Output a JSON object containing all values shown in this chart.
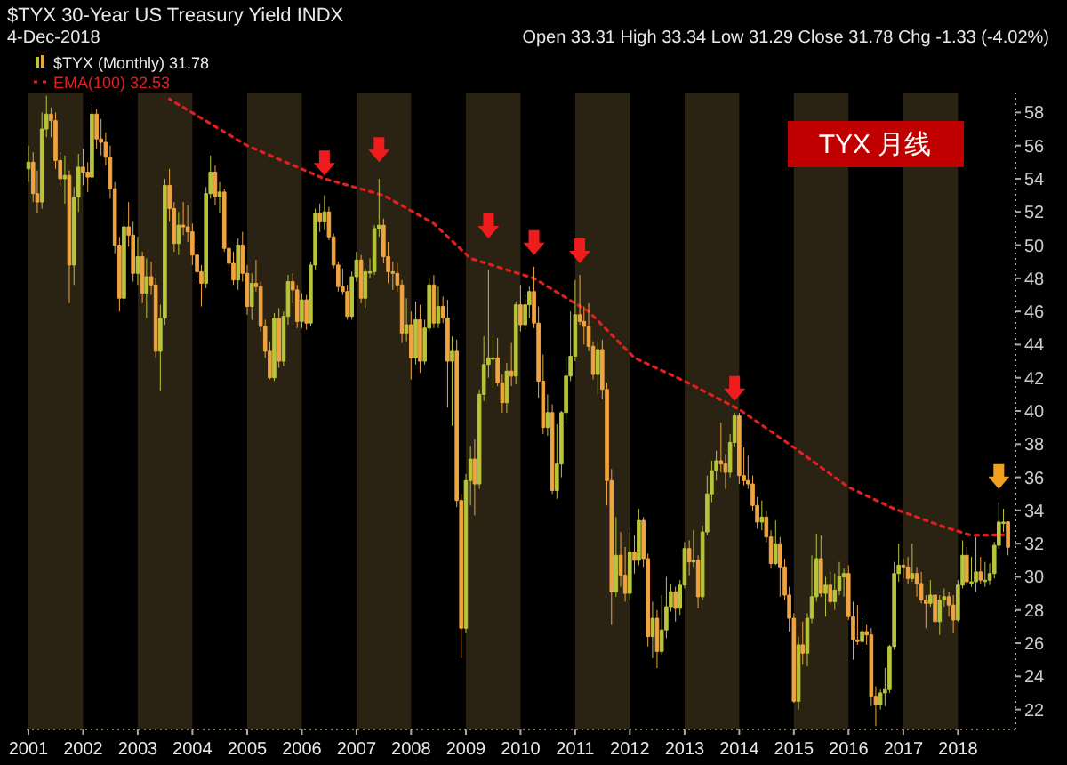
{
  "chart_data": {
    "type": "candlestick",
    "title": "$TYX 30-Year US Treasury Yield INDX",
    "subtitle": "4-Dec-2018",
    "annotations": [
      "Open 33.31  High 33.34  Low 31.29  Close 31.78  Chg -1.33 (-4.02%)",
      "TYX 月线"
    ],
    "legend": "top left",
    "colors": [
      "#b8c43a",
      "#f0a440",
      "#f0a440",
      "#b8c43a",
      "#b8c43a",
      "#f0a440",
      "#f0a440",
      "#f0a440",
      "#b8c43a",
      "#f0a440",
      "#b8c43a",
      "#b8c43a",
      "#f0a440",
      "#f0a440",
      "#b8c43a",
      "#f0a440",
      "#f0a440",
      "#f0a440",
      "#f0a440",
      "#f0a440",
      "#f0a440",
      "#b8c43a",
      "#f0a440",
      "#f0a440",
      "#b8c43a",
      "#f0a440",
      "#b8c43a",
      "#f0a440",
      "#f0a440",
      "#b8c43a",
      "#b8c43a",
      "#f0a440",
      "#f0a440",
      "#b8c43a",
      "#f0a440",
      "#f0a440",
      "#f0a440",
      "#f0a440",
      "#f0a440",
      "#b8c43a",
      "#b8c43a",
      "#f0a440",
      "#b8c43a",
      "#f0a440",
      "#f0a440",
      "#f0a440",
      "#b8c43a",
      "#f0a440",
      "#f0a440",
      "#b8c43a",
      "#f0a440",
      "#f0a440",
      "#f0a440",
      "#f0a440",
      "#b8c43a",
      "#f0a440",
      "#b8c43a",
      "#b8c43a",
      "#f0a440",
      "#f0a440",
      "#b8c43a",
      "#f0a440",
      "#b8c43a",
      "#b8c43a",
      "#f0a440",
      "#b8c43a",
      "#f0a440",
      "#f0a440",
      "#f0a440",
      "#f0a440",
      "#f0a440",
      "#b8c43a",
      "#b8c43a",
      "#f0a440",
      "#b8c43a",
      "#b8c43a",
      "#b8c43a",
      "#b8c43a",
      "#f0a440",
      "#f0a440",
      "#f0a440",
      "#f0a440",
      "#f0a440",
      "#b8c43a",
      "#f0a440",
      "#b8c43a",
      "#f0a440",
      "#b8c43a",
      "#b8c43a",
      "#f0a440",
      "#b8c43a",
      "#f0a440",
      "#f0a440",
      "#b8c43a",
      "#f0a440",
      "#f0a440",
      "#b8c43a",
      "#b8c43a",
      "#f0a440",
      "#b8c43a",
      "#b8c43a",
      "#b8c43a",
      "#b8c43a",
      "#f0a440",
      "#f0a440",
      "#b8c43a",
      "#f0a440",
      "#b8c43a",
      "#f0a440",
      "#b8c43a",
      "#b8c43a",
      "#f0a440",
      "#f0a440",
      "#f0a440",
      "#b8c43a",
      "#f0a440",
      "#b8c43a",
      "#b8c43a",
      "#b8c43a",
      "#b8c43a",
      "#b8c43a",
      "#f0a440",
      "#f0a440",
      "#f0a440",
      "#f0a440",
      "#b8c43a",
      "#f0a440",
      "#f0a440",
      "#f0a440",
      "#b8c43a",
      "#f0a440",
      "#f0a440",
      "#b8c43a",
      "#f0a440",
      "#b8c43a",
      "#f0a440",
      "#f0a440",
      "#b8c43a",
      "#f0a440",
      "#b8c43a",
      "#b8c43a",
      "#b8c43a",
      "#f0a440",
      "#b8c43a",
      "#b8c43a",
      "#f0a440",
      "#b8c43a",
      "#f0a440",
      "#b8c43a",
      "#b8c43a",
      "#b8c43a",
      "#b8c43a",
      "#f0a440",
      "#f0a440",
      "#b8c43a",
      "#b8c43a",
      "#f0a440",
      "#f0a440",
      "#f0a440",
      "#f0a440",
      "#f0a440",
      "#b8c43a",
      "#f0a440",
      "#f0a440",
      "#b8c43a",
      "#f0a440",
      "#f0a440",
      "#f0a440",
      "#f0a440",
      "#b8c43a",
      "#f0a440",
      "#b8c43a",
      "#b8c43a",
      "#b8c43a",
      "#f0a440",
      "#b8c43a",
      "#f0a440",
      "#b8c43a",
      "#b8c43a",
      "#b8c43a",
      "#f0a440",
      "#f0a440",
      "#f0a440",
      "#b8c43a",
      "#f0a440",
      "#f0a440",
      "#f0a440",
      "#b8c43a",
      "#b8c43a",
      "#b8c43a",
      "#b8c43a",
      "#b8c43a",
      "#f0a440",
      "#f0a440",
      "#b8c43a",
      "#f0a440",
      "#f0a440",
      "#f0a440",
      "#b8c43a",
      "#f0a440",
      "#b8c43a",
      "#b8c43a",
      "#f0a440",
      "#f0a440",
      "#b8c43a",
      "#b8c43a",
      "#f0a440",
      "#b8c43a",
      "#b8c43a",
      "#f0a440",
      "#b8c43a",
      "#b8c43a",
      "#b8c43a",
      "#b8c43a",
      "#b8c43a",
      "#f0a440"
    ],
    "series": [
      {
        "type": "candlestick",
        "name": "$TYX (Monthly) 31.78",
        "x": [
          "2001-01",
          "2001-02",
          "2001-03",
          "2001-04",
          "2001-05",
          "2001-06",
          "2001-07",
          "2001-08",
          "2001-09",
          "2001-10",
          "2001-11",
          "2001-12",
          "2002-01",
          "2002-02",
          "2002-03",
          "2002-04",
          "2002-05",
          "2002-06",
          "2002-07",
          "2002-08",
          "2002-09",
          "2002-10",
          "2002-11",
          "2002-12",
          "2003-01",
          "2003-02",
          "2003-03",
          "2003-04",
          "2003-05",
          "2003-06",
          "2003-07",
          "2003-08",
          "2003-09",
          "2003-10",
          "2003-11",
          "2003-12",
          "2004-01",
          "2004-02",
          "2004-03",
          "2004-04",
          "2004-05",
          "2004-06",
          "2004-07",
          "2004-08",
          "2004-09",
          "2004-10",
          "2004-11",
          "2004-12",
          "2005-01",
          "2005-02",
          "2005-03",
          "2005-04",
          "2005-05",
          "2005-06",
          "2005-07",
          "2005-08",
          "2005-09",
          "2005-10",
          "2005-11",
          "2005-12",
          "2006-01",
          "2006-02",
          "2006-03",
          "2006-04",
          "2006-05",
          "2006-06",
          "2006-07",
          "2006-08",
          "2006-09",
          "2006-10",
          "2006-11",
          "2006-12",
          "2007-01",
          "2007-02",
          "2007-03",
          "2007-04",
          "2007-05",
          "2007-06",
          "2007-07",
          "2007-08",
          "2007-09",
          "2007-10",
          "2007-11",
          "2007-12",
          "2008-01",
          "2008-02",
          "2008-03",
          "2008-04",
          "2008-05",
          "2008-06",
          "2008-07",
          "2008-08",
          "2008-09",
          "2008-10",
          "2008-11",
          "2008-12",
          "2009-01",
          "2009-02",
          "2009-03",
          "2009-04",
          "2009-05",
          "2009-06",
          "2009-07",
          "2009-08",
          "2009-09",
          "2009-10",
          "2009-11",
          "2009-12",
          "2010-01",
          "2010-02",
          "2010-03",
          "2010-04",
          "2010-05",
          "2010-06",
          "2010-07",
          "2010-08",
          "2010-09",
          "2010-10",
          "2010-11",
          "2010-12",
          "2011-01",
          "2011-02",
          "2011-03",
          "2011-04",
          "2011-05",
          "2011-06",
          "2011-07",
          "2011-08",
          "2011-09",
          "2011-10",
          "2011-11",
          "2011-12",
          "2012-01",
          "2012-02",
          "2012-03",
          "2012-04",
          "2012-05",
          "2012-06",
          "2012-07",
          "2012-08",
          "2012-09",
          "2012-10",
          "2012-11",
          "2012-12",
          "2013-01",
          "2013-02",
          "2013-03",
          "2013-04",
          "2013-05",
          "2013-06",
          "2013-07",
          "2013-08",
          "2013-09",
          "2013-10",
          "2013-11",
          "2013-12",
          "2014-01",
          "2014-02",
          "2014-03",
          "2014-04",
          "2014-05",
          "2014-06",
          "2014-07",
          "2014-08",
          "2014-09",
          "2014-10",
          "2014-11",
          "2014-12",
          "2015-01",
          "2015-02",
          "2015-03",
          "2015-04",
          "2015-05",
          "2015-06",
          "2015-07",
          "2015-08",
          "2015-09",
          "2015-10",
          "2015-11",
          "2015-12",
          "2016-01",
          "2016-02",
          "2016-03",
          "2016-04",
          "2016-05",
          "2016-06",
          "2016-07",
          "2016-08",
          "2016-09",
          "2016-10",
          "2016-11",
          "2016-12",
          "2017-01",
          "2017-02",
          "2017-03",
          "2017-04",
          "2017-05",
          "2017-06",
          "2017-07",
          "2017-08",
          "2017-09",
          "2017-10",
          "2017-11",
          "2017-12",
          "2018-01",
          "2018-02",
          "2018-03",
          "2018-04",
          "2018-05",
          "2018-06",
          "2018-07",
          "2018-08",
          "2018-09",
          "2018-10",
          "2018-11",
          "2018-12"
        ],
        "ohlc": [
          [
            54.6,
            56.0,
            53.8,
            55.0
          ],
          [
            55.0,
            55.6,
            52.6,
            53.1
          ],
          [
            53.1,
            54.5,
            51.9,
            52.6
          ],
          [
            52.6,
            58.0,
            52.2,
            57.0
          ],
          [
            57.0,
            59.0,
            56.5,
            57.9
          ],
          [
            57.9,
            58.3,
            56.5,
            57.5
          ],
          [
            57.5,
            58.0,
            54.6,
            55.1
          ],
          [
            55.1,
            55.6,
            53.5,
            54.0
          ],
          [
            54.0,
            55.4,
            52.5,
            54.2
          ],
          [
            54.2,
            54.5,
            46.5,
            48.8
          ],
          [
            48.8,
            53.5,
            47.6,
            52.9
          ],
          [
            52.9,
            55.5,
            52.0,
            54.7
          ],
          [
            54.7,
            55.8,
            53.6,
            54.4
          ],
          [
            54.4,
            55.0,
            53.2,
            54.1
          ],
          [
            54.1,
            58.5,
            53.8,
            57.9
          ],
          [
            57.9,
            58.2,
            55.8,
            56.4
          ],
          [
            56.4,
            57.6,
            55.4,
            56.2
          ],
          [
            56.2,
            56.8,
            54.8,
            55.3
          ],
          [
            55.3,
            56.0,
            52.8,
            53.4
          ],
          [
            53.4,
            53.8,
            49.5,
            50.0
          ],
          [
            50.0,
            50.5,
            46.0,
            46.8
          ],
          [
            46.8,
            52.0,
            46.4,
            51.1
          ],
          [
            51.1,
            52.6,
            49.9,
            50.6
          ],
          [
            50.6,
            51.4,
            47.8,
            48.3
          ],
          [
            48.3,
            50.5,
            47.6,
            49.3
          ],
          [
            49.3,
            49.6,
            46.5,
            47.1
          ],
          [
            47.1,
            49.2,
            45.6,
            48.1
          ],
          [
            48.1,
            49.0,
            47.0,
            47.6
          ],
          [
            47.6,
            48.0,
            43.2,
            43.6
          ],
          [
            43.6,
            46.4,
            41.2,
            45.6
          ],
          [
            45.6,
            54.0,
            45.2,
            53.6
          ],
          [
            53.6,
            54.6,
            51.4,
            52.2
          ],
          [
            52.2,
            52.6,
            49.6,
            50.1
          ],
          [
            50.1,
            52.0,
            49.4,
            51.2
          ],
          [
            51.2,
            52.6,
            50.6,
            51.1
          ],
          [
            51.1,
            52.4,
            50.2,
            50.8
          ],
          [
            50.8,
            51.3,
            48.8,
            49.4
          ],
          [
            49.4,
            50.0,
            48.0,
            48.4
          ],
          [
            48.4,
            48.8,
            46.3,
            47.7
          ],
          [
            47.7,
            53.5,
            47.4,
            53.1
          ],
          [
            53.1,
            55.4,
            52.8,
            54.4
          ],
          [
            54.4,
            54.8,
            52.4,
            52.9
          ],
          [
            52.9,
            53.8,
            51.9,
            53.2
          ],
          [
            53.2,
            53.4,
            49.6,
            49.8
          ],
          [
            49.8,
            50.2,
            48.4,
            48.9
          ],
          [
            48.9,
            49.6,
            47.6,
            47.9
          ],
          [
            47.9,
            50.4,
            47.3,
            50.0
          ],
          [
            50.0,
            50.8,
            47.8,
            48.3
          ],
          [
            48.3,
            48.8,
            45.8,
            46.3
          ],
          [
            46.3,
            48.3,
            45.5,
            47.7
          ],
          [
            47.7,
            49.1,
            47.2,
            47.5
          ],
          [
            47.5,
            47.8,
            44.8,
            45.1
          ],
          [
            45.1,
            45.5,
            43.2,
            43.6
          ],
          [
            43.6,
            44.2,
            41.9,
            42.0
          ],
          [
            42.0,
            45.9,
            41.8,
            45.6
          ],
          [
            45.6,
            46.2,
            42.6,
            43.0
          ],
          [
            43.0,
            46.0,
            42.7,
            45.7
          ],
          [
            45.7,
            48.2,
            45.2,
            47.8
          ],
          [
            47.8,
            48.3,
            46.5,
            47.3
          ],
          [
            47.3,
            47.6,
            45.0,
            45.4
          ],
          [
            45.4,
            47.1,
            45.0,
            46.7
          ],
          [
            46.7,
            47.0,
            44.9,
            45.3
          ],
          [
            45.3,
            49.0,
            45.1,
            48.8
          ],
          [
            48.8,
            52.2,
            48.5,
            51.9
          ],
          [
            51.9,
            52.5,
            50.8,
            51.4
          ],
          [
            51.4,
            53.0,
            50.9,
            52.0
          ],
          [
            52.0,
            52.3,
            50.3,
            50.5
          ],
          [
            50.5,
            50.7,
            48.6,
            48.8
          ],
          [
            48.8,
            49.0,
            47.2,
            47.5
          ],
          [
            47.5,
            48.6,
            47.0,
            47.2
          ],
          [
            47.2,
            47.6,
            45.5,
            45.7
          ],
          [
            45.7,
            48.4,
            45.5,
            48.1
          ],
          [
            48.1,
            49.6,
            47.8,
            49.1
          ],
          [
            49.1,
            49.4,
            46.5,
            46.8
          ],
          [
            46.8,
            48.6,
            46.2,
            48.4
          ],
          [
            48.4,
            49.2,
            48.0,
            48.4
          ],
          [
            48.4,
            51.2,
            48.2,
            51.0
          ],
          [
            51.0,
            54.0,
            50.5,
            51.2
          ],
          [
            51.2,
            51.6,
            48.9,
            49.3
          ],
          [
            49.3,
            50.2,
            47.7,
            48.4
          ],
          [
            48.4,
            49.0,
            47.3,
            48.3
          ],
          [
            48.3,
            48.9,
            47.2,
            47.6
          ],
          [
            47.6,
            47.9,
            44.1,
            44.7
          ],
          [
            44.7,
            46.8,
            44.2,
            45.2
          ],
          [
            45.2,
            46.0,
            41.9,
            43.2
          ],
          [
            43.2,
            46.6,
            42.8,
            45.5
          ],
          [
            45.5,
            46.4,
            42.3,
            43.0
          ],
          [
            43.0,
            45.5,
            42.8,
            45.0
          ],
          [
            45.0,
            48.0,
            44.8,
            47.6
          ],
          [
            47.6,
            48.2,
            45.0,
            45.3
          ],
          [
            45.3,
            47.5,
            45.0,
            46.3
          ],
          [
            46.3,
            46.9,
            45.3,
            45.6
          ],
          [
            45.6,
            46.7,
            40.2,
            43.0
          ],
          [
            43.0,
            44.5,
            39.1,
            43.6
          ],
          [
            43.6,
            44.3,
            34.2,
            34.6
          ],
          [
            34.6,
            35.0,
            25.1,
            26.9
          ],
          [
            26.9,
            36.2,
            26.6,
            35.8
          ],
          [
            35.8,
            37.9,
            34.3,
            37.1
          ],
          [
            37.1,
            38.3,
            33.7,
            35.6
          ],
          [
            35.6,
            41.3,
            35.3,
            41.0
          ],
          [
            41.0,
            44.5,
            40.6,
            42.8
          ],
          [
            42.8,
            48.5,
            42.0,
            43.2
          ],
          [
            43.2,
            44.5,
            41.4,
            43.2
          ],
          [
            43.2,
            44.4,
            41.5,
            41.7
          ],
          [
            41.7,
            42.2,
            39.9,
            40.5
          ],
          [
            40.5,
            42.9,
            39.9,
            42.4
          ],
          [
            42.4,
            44.1,
            41.5,
            42.1
          ],
          [
            42.1,
            46.6,
            41.6,
            46.4
          ],
          [
            46.4,
            47.6,
            44.8,
            45.2
          ],
          [
            45.2,
            47.0,
            44.9,
            46.4
          ],
          [
            46.4,
            47.5,
            45.6,
            47.2
          ],
          [
            47.2,
            48.7,
            45.0,
            45.3
          ],
          [
            45.3,
            46.3,
            40.8,
            41.8
          ],
          [
            41.8,
            43.4,
            38.6,
            39.0
          ],
          [
            39.0,
            41.0,
            38.5,
            39.9
          ],
          [
            39.9,
            40.4,
            35.0,
            35.2
          ],
          [
            35.2,
            39.2,
            34.7,
            36.8
          ],
          [
            36.8,
            40.0,
            36.0,
            39.9
          ],
          [
            39.9,
            43.3,
            39.3,
            42.1
          ],
          [
            42.1,
            46.0,
            41.8,
            43.3
          ],
          [
            43.3,
            47.9,
            43.0,
            45.8
          ],
          [
            45.8,
            48.2,
            45.2,
            45.4
          ],
          [
            45.4,
            46.3,
            44.0,
            45.1
          ],
          [
            45.1,
            46.5,
            43.6,
            43.9
          ],
          [
            43.9,
            44.2,
            41.9,
            42.2
          ],
          [
            42.2,
            44.2,
            41.0,
            43.7
          ],
          [
            43.7,
            44.3,
            40.7,
            41.3
          ],
          [
            41.3,
            41.7,
            34.3,
            35.8
          ],
          [
            35.8,
            36.5,
            27.1,
            29.1
          ],
          [
            29.1,
            33.6,
            28.8,
            31.3
          ],
          [
            31.3,
            32.7,
            29.4,
            30.1
          ],
          [
            30.1,
            31.8,
            28.5,
            29.0
          ],
          [
            29.0,
            32.7,
            28.6,
            31.5
          ],
          [
            31.5,
            32.5,
            30.2,
            31.0
          ],
          [
            31.0,
            34.1,
            30.7,
            33.4
          ],
          [
            33.4,
            33.6,
            30.6,
            31.1
          ],
          [
            31.1,
            31.4,
            25.8,
            26.4
          ],
          [
            26.4,
            28.5,
            25.1,
            27.5
          ],
          [
            27.5,
            28.0,
            24.5,
            25.5
          ],
          [
            25.5,
            28.9,
            25.3,
            26.8
          ],
          [
            26.8,
            30.0,
            26.3,
            28.2
          ],
          [
            28.2,
            29.6,
            27.9,
            29.1
          ],
          [
            29.1,
            29.4,
            27.3,
            28.1
          ],
          [
            28.1,
            29.8,
            27.7,
            29.5
          ],
          [
            29.5,
            32.1,
            29.3,
            31.7
          ],
          [
            31.7,
            32.2,
            30.1,
            30.9
          ],
          [
            30.9,
            32.8,
            30.6,
            31.0
          ],
          [
            31.0,
            31.3,
            28.1,
            28.8
          ],
          [
            28.8,
            33.1,
            28.6,
            32.7
          ],
          [
            32.7,
            36.1,
            32.5,
            35.0
          ],
          [
            35.0,
            37.0,
            34.5,
            36.4
          ],
          [
            36.4,
            37.6,
            35.8,
            37.0
          ],
          [
            37.0,
            39.3,
            36.3,
            36.8
          ],
          [
            36.8,
            37.4,
            35.3,
            36.3
          ],
          [
            36.3,
            38.6,
            36.0,
            38.1
          ],
          [
            38.1,
            39.9,
            37.8,
            39.7
          ],
          [
            39.7,
            39.9,
            35.6,
            36.1
          ],
          [
            36.1,
            37.8,
            35.5,
            35.8
          ],
          [
            35.8,
            37.3,
            35.3,
            35.6
          ],
          [
            35.6,
            36.1,
            34.0,
            34.3
          ],
          [
            34.3,
            34.8,
            32.9,
            33.3
          ],
          [
            33.3,
            34.6,
            32.8,
            33.6
          ],
          [
            33.6,
            34.0,
            32.1,
            32.4
          ],
          [
            32.4,
            32.8,
            30.5,
            30.8
          ],
          [
            30.8,
            33.4,
            30.7,
            32.0
          ],
          [
            32.0,
            32.4,
            28.8,
            30.6
          ],
          [
            30.6,
            31.1,
            28.6,
            28.9
          ],
          [
            28.9,
            29.4,
            26.7,
            27.5
          ],
          [
            27.5,
            27.8,
            22.4,
            22.5
          ],
          [
            22.5,
            26.4,
            22.0,
            25.9
          ],
          [
            25.9,
            27.3,
            24.7,
            25.4
          ],
          [
            25.4,
            27.8,
            24.6,
            27.5
          ],
          [
            27.5,
            31.3,
            27.2,
            28.8
          ],
          [
            28.8,
            32.6,
            28.5,
            31.1
          ],
          [
            31.1,
            32.5,
            28.8,
            29.0
          ],
          [
            29.0,
            30.0,
            27.6,
            29.5
          ],
          [
            29.5,
            30.3,
            28.3,
            28.5
          ],
          [
            28.5,
            30.2,
            28.0,
            29.2
          ],
          [
            29.2,
            30.9,
            28.9,
            30.0
          ],
          [
            30.0,
            30.5,
            28.8,
            30.2
          ],
          [
            30.2,
            30.7,
            27.4,
            27.6
          ],
          [
            27.6,
            28.5,
            25.0,
            26.2
          ],
          [
            26.2,
            28.3,
            25.9,
            26.1
          ],
          [
            26.1,
            27.5,
            25.6,
            26.7
          ],
          [
            26.7,
            27.1,
            25.9,
            26.5
          ],
          [
            26.5,
            26.9,
            22.2,
            22.8
          ],
          [
            22.8,
            23.4,
            21.0,
            22.3
          ],
          [
            22.3,
            23.2,
            22.0,
            23.0
          ],
          [
            23.0,
            24.5,
            22.2,
            23.2
          ],
          [
            23.2,
            25.9,
            23.0,
            25.8
          ],
          [
            25.8,
            30.9,
            25.6,
            30.2
          ],
          [
            30.2,
            32.0,
            29.7,
            30.7
          ],
          [
            30.7,
            31.1,
            29.9,
            30.6
          ],
          [
            30.6,
            31.2,
            29.6,
            29.9
          ],
          [
            29.9,
            32.0,
            29.7,
            30.2
          ],
          [
            30.2,
            30.6,
            28.8,
            29.6
          ],
          [
            29.6,
            30.3,
            28.4,
            28.6
          ],
          [
            28.6,
            28.9,
            26.9,
            28.4
          ],
          [
            28.4,
            29.8,
            28.2,
            28.9
          ],
          [
            28.9,
            29.1,
            27.2,
            27.3
          ],
          [
            27.3,
            28.9,
            26.5,
            28.6
          ],
          [
            28.6,
            29.3,
            28.2,
            28.8
          ],
          [
            28.8,
            29.1,
            27.6,
            28.3
          ],
          [
            28.3,
            28.9,
            26.6,
            27.4
          ],
          [
            27.4,
            29.8,
            27.3,
            29.5
          ],
          [
            29.5,
            32.2,
            29.3,
            31.3
          ],
          [
            31.3,
            31.8,
            29.5,
            29.7
          ],
          [
            29.7,
            31.2,
            29.4,
            29.7
          ],
          [
            29.7,
            32.4,
            29.1,
            30.3
          ],
          [
            30.3,
            31.2,
            29.6,
            29.8
          ],
          [
            29.8,
            30.9,
            29.4,
            29.8
          ],
          [
            29.8,
            30.8,
            29.5,
            30.2
          ],
          [
            30.2,
            32.1,
            29.9,
            31.9
          ],
          [
            31.9,
            34.5,
            31.7,
            33.3
          ],
          [
            33.3,
            34.1,
            32.7,
            33.3
          ],
          [
            33.31,
            33.34,
            31.29,
            31.78
          ]
        ]
      },
      {
        "type": "line",
        "name": "EMA(100) 32.53",
        "color": "#e02020",
        "line_style": "dotted",
        "x": [
          "2003-08",
          "2005-01",
          "2006-06",
          "2007-07",
          "2008-06",
          "2009-02",
          "2010-04",
          "2011-04",
          "2012-02",
          "2013-01",
          "2014-01",
          "2015-01",
          "2016-01",
          "2016-11",
          "2017-10",
          "2018-04",
          "2018-11"
        ],
        "values": [
          58.8,
          56.0,
          54.0,
          53.0,
          51.3,
          49.2,
          48.0,
          46.0,
          43.2,
          41.8,
          40.1,
          37.8,
          35.4,
          34.1,
          33.0,
          32.5,
          32.53
        ]
      }
    ],
    "xlim": [
      "2000-12-20",
      "2019-01-20"
    ],
    "xticks": [
      {
        "value": "2001",
        "label": "2001"
      },
      {
        "value": "2002",
        "label": "2002"
      },
      {
        "value": "2003",
        "label": "2003"
      },
      {
        "value": "2004",
        "label": "2004"
      },
      {
        "value": "2005",
        "label": "2005"
      },
      {
        "value": "2006",
        "label": "2006"
      },
      {
        "value": "2007",
        "label": "2007"
      },
      {
        "value": "2008",
        "label": "2008"
      },
      {
        "value": "2009",
        "label": "2009"
      },
      {
        "value": "2010",
        "label": "2010"
      },
      {
        "value": "2011",
        "label": "2011"
      },
      {
        "value": "2012",
        "label": "2012"
      },
      {
        "value": "2013",
        "label": "2013"
      },
      {
        "value": "2014",
        "label": "2014"
      },
      {
        "value": "2015",
        "label": "2015"
      },
      {
        "value": "2016",
        "label": "2016"
      },
      {
        "value": "2017",
        "label": "2017"
      },
      {
        "value": "2018",
        "label": "2018"
      }
    ],
    "ylim": [
      20.8,
      59.2
    ],
    "yticks": [
      22,
      24,
      26,
      28,
      30,
      32,
      34,
      36,
      38,
      40,
      42,
      44,
      46,
      48,
      50,
      52,
      54,
      56,
      58
    ]
  }
}
